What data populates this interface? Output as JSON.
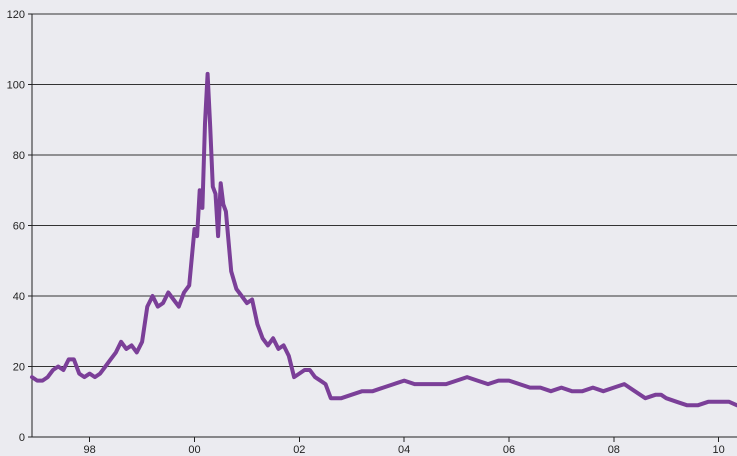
{
  "chart_data": {
    "type": "line",
    "title": "",
    "xlabel": "",
    "ylabel": "",
    "xlim": [
      1996.9,
      2010.35
    ],
    "ylim": [
      0,
      120
    ],
    "yticks": [
      0,
      20,
      40,
      60,
      80,
      100,
      120
    ],
    "xticks": [
      {
        "value": 1998,
        "label": "98"
      },
      {
        "value": 2000,
        "label": "00"
      },
      {
        "value": 2002,
        "label": "02"
      },
      {
        "value": 2004,
        "label": "04"
      },
      {
        "value": 2006,
        "label": "06"
      },
      {
        "value": 2008,
        "label": "08"
      },
      {
        "value": 2010,
        "label": "10"
      }
    ],
    "grid": true,
    "line_color": "#7b3f98",
    "series": [
      {
        "x": [
          1996.9,
          1997.0,
          1997.1,
          1997.2,
          1997.3,
          1997.4,
          1997.5,
          1997.6,
          1997.7,
          1997.8,
          1997.9,
          1998.0,
          1998.1,
          1998.2,
          1998.3,
          1998.4,
          1998.5,
          1998.6,
          1998.7,
          1998.8,
          1998.9,
          1999.0,
          1999.1,
          1999.2,
          1999.3,
          1999.4,
          1999.5,
          1999.6,
          1999.7,
          1999.8,
          1999.9,
          2000.0,
          2000.05,
          2000.1,
          2000.15,
          2000.2,
          2000.25,
          2000.3,
          2000.35,
          2000.4,
          2000.45,
          2000.5,
          2000.55,
          2000.6,
          2000.7,
          2000.8,
          2000.9,
          2001.0,
          2001.1,
          2001.2,
          2001.3,
          2001.4,
          2001.5,
          2001.6,
          2001.7,
          2001.8,
          2001.9,
          2002.0,
          2002.1,
          2002.2,
          2002.3,
          2002.4,
          2002.5,
          2002.6,
          2002.8,
          2003.0,
          2003.2,
          2003.4,
          2003.6,
          2003.8,
          2004.0,
          2004.2,
          2004.4,
          2004.6,
          2004.8,
          2005.0,
          2005.2,
          2005.4,
          2005.6,
          2005.8,
          2006.0,
          2006.2,
          2006.4,
          2006.6,
          2006.8,
          2007.0,
          2007.2,
          2007.4,
          2007.6,
          2007.8,
          2008.0,
          2008.2,
          2008.4,
          2008.6,
          2008.8,
          2008.9,
          2009.0,
          2009.2,
          2009.4,
          2009.6,
          2009.8,
          2010.0,
          2010.2,
          2010.35
        ],
        "y": [
          17,
          16,
          16,
          17,
          19,
          20,
          19,
          22,
          22,
          18,
          17,
          18,
          17,
          18,
          20,
          22,
          24,
          27,
          25,
          26,
          24,
          27,
          37,
          40,
          37,
          38,
          41,
          39,
          37,
          41,
          43,
          59,
          57,
          70,
          65,
          89,
          103,
          88,
          71,
          69,
          57,
          72,
          66,
          64,
          47,
          42,
          40,
          38,
          39,
          32,
          28,
          26,
          28,
          25,
          26,
          23,
          17,
          18,
          19,
          19,
          17,
          16,
          15,
          11,
          11,
          12,
          13,
          13,
          14,
          15,
          16,
          15,
          15,
          15,
          15,
          16,
          17,
          16,
          15,
          16,
          16,
          15,
          14,
          14,
          13,
          14,
          13,
          13,
          14,
          13,
          14,
          15,
          13,
          11,
          12,
          12,
          11,
          10,
          9,
          9,
          10,
          10,
          10,
          9
        ]
      }
    ]
  }
}
